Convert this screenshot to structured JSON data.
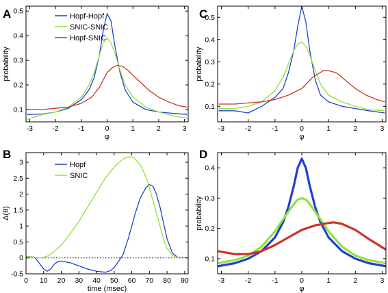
{
  "colors": {
    "blue": "#1f3fd1",
    "green": "#8fe23a",
    "red": "#cc3322"
  },
  "panels": [
    {
      "letter": "A",
      "type": "line",
      "xlabel": "φ",
      "ylabel": "probability",
      "xlim": [
        -3.14159,
        3.14159
      ],
      "ylim": [
        0.05,
        0.52
      ],
      "xticks": [
        -3,
        -2,
        -1,
        0,
        1,
        2,
        3
      ],
      "yticks": [
        0.1,
        0.2,
        0.3,
        0.4,
        0.5
      ],
      "legend": [
        "Hopf-Hopf",
        "SNIC-SNIC",
        "Hopf-SNIC"
      ],
      "legend_position": "top-left",
      "series": [
        {
          "name": "Hopf-Hopf",
          "color": "blue",
          "x": [
            -3.1,
            -2.5,
            -2,
            -1.5,
            -1,
            -0.7,
            -0.5,
            -0.3,
            -0.15,
            0,
            0.15,
            0.3,
            0.5,
            0.7,
            1,
            1.5,
            2,
            2.5,
            3.1
          ],
          "y": [
            0.08,
            0.082,
            0.09,
            0.105,
            0.14,
            0.18,
            0.23,
            0.32,
            0.42,
            0.49,
            0.46,
            0.36,
            0.25,
            0.18,
            0.13,
            0.1,
            0.09,
            0.085,
            0.08
          ]
        },
        {
          "name": "SNIC-SNIC",
          "color": "green",
          "x": [
            -3.1,
            -2.5,
            -2,
            -1.5,
            -1,
            -0.7,
            -0.5,
            -0.3,
            -0.15,
            0,
            0.15,
            0.3,
            0.5,
            0.7,
            1,
            1.5,
            2,
            2.5,
            3.1
          ],
          "y": [
            0.06,
            0.08,
            0.09,
            0.11,
            0.15,
            0.2,
            0.25,
            0.32,
            0.37,
            0.39,
            0.37,
            0.33,
            0.26,
            0.2,
            0.15,
            0.11,
            0.09,
            0.075,
            0.065
          ]
        },
        {
          "name": "Hopf-SNIC",
          "color": "red",
          "x": [
            -3.1,
            -2.5,
            -2,
            -1.5,
            -1,
            -0.6,
            -0.3,
            0,
            0.2,
            0.4,
            0.6,
            0.8,
            1,
            1.3,
            1.6,
            2,
            2.4,
            2.8,
            3.1
          ],
          "y": [
            0.1,
            0.1,
            0.105,
            0.11,
            0.125,
            0.15,
            0.19,
            0.25,
            0.27,
            0.28,
            0.275,
            0.26,
            0.24,
            0.21,
            0.18,
            0.15,
            0.13,
            0.115,
            0.11
          ]
        }
      ]
    },
    {
      "letter": "C",
      "type": "line",
      "xlabel": "φ",
      "ylabel": "probability",
      "xlim": [
        -3.14159,
        3.14159
      ],
      "ylim": [
        0.03,
        0.55
      ],
      "xticks": [
        -3,
        -2,
        -1,
        0,
        1,
        2,
        3
      ],
      "yticks": [
        0.1,
        0.2,
        0.3,
        0.4,
        0.5
      ],
      "series": [
        {
          "name": "",
          "color": "blue",
          "x": [
            -3.1,
            -2.5,
            -2,
            -1.5,
            -1,
            -0.7,
            -0.5,
            -0.3,
            -0.15,
            0,
            0.15,
            0.3,
            0.5,
            0.7,
            1,
            1.5,
            2,
            2.5,
            3.1
          ],
          "y": [
            0.08,
            0.08,
            0.07,
            0.1,
            0.14,
            0.18,
            0.25,
            0.35,
            0.46,
            0.55,
            0.48,
            0.35,
            0.22,
            0.15,
            0.12,
            0.1,
            0.09,
            0.08,
            0.07
          ]
        },
        {
          "name": "",
          "color": "green",
          "x": [
            -3.1,
            -2.5,
            -2,
            -1.5,
            -1,
            -0.7,
            -0.5,
            -0.3,
            -0.15,
            0,
            0.15,
            0.3,
            0.5,
            0.7,
            1,
            1.5,
            2,
            2.5,
            3.1
          ],
          "y": [
            0.09,
            0.09,
            0.1,
            0.12,
            0.17,
            0.23,
            0.29,
            0.35,
            0.38,
            0.39,
            0.37,
            0.33,
            0.26,
            0.2,
            0.15,
            0.12,
            0.1,
            0.085,
            0.08
          ]
        },
        {
          "name": "",
          "color": "red",
          "x": [
            -3.1,
            -2.5,
            -2,
            -1.5,
            -1,
            -0.5,
            0,
            0.4,
            0.8,
            1,
            1.3,
            1.6,
            2,
            2.4,
            2.8,
            3.1
          ],
          "y": [
            0.11,
            0.11,
            0.115,
            0.12,
            0.13,
            0.15,
            0.18,
            0.23,
            0.26,
            0.26,
            0.25,
            0.22,
            0.18,
            0.15,
            0.13,
            0.12
          ]
        }
      ]
    },
    {
      "letter": "B",
      "type": "line",
      "xlabel": "time (msec)",
      "ylabel": "Δ(θ)",
      "xlim": [
        0,
        92
      ],
      "ylim": [
        -0.5,
        3.3
      ],
      "xticks": [
        0,
        10,
        20,
        30,
        40,
        50,
        60,
        70,
        80,
        90
      ],
      "yticks": [
        -0.5,
        0,
        0.5,
        1,
        1.5,
        2,
        2.5,
        3
      ],
      "legend": [
        "Hopf",
        "SNIC"
      ],
      "legend_position": "top-center",
      "zero_line": true,
      "series": [
        {
          "name": "Hopf",
          "color": "blue",
          "x": [
            0,
            5,
            8,
            10,
            12,
            14,
            16,
            18,
            20,
            25,
            30,
            35,
            40,
            45,
            48,
            50,
            52,
            55,
            58,
            60,
            62,
            65,
            68,
            70,
            72,
            74,
            76,
            78,
            80,
            83,
            86,
            90
          ],
          "y": [
            0.05,
            0.02,
            -0.2,
            -0.35,
            -0.42,
            -0.35,
            -0.2,
            -0.12,
            -0.1,
            -0.15,
            -0.25,
            -0.35,
            -0.42,
            -0.45,
            -0.4,
            -0.3,
            -0.15,
            0.1,
            0.6,
            1.0,
            1.4,
            1.9,
            2.2,
            2.3,
            2.25,
            2.0,
            1.6,
            1.1,
            0.6,
            0.15,
            0.02,
            0.02
          ]
        },
        {
          "name": "SNIC",
          "color": "green",
          "x": [
            0,
            5,
            8,
            10,
            12,
            15,
            20,
            25,
            30,
            35,
            40,
            45,
            50,
            55,
            58,
            60,
            62,
            65,
            68,
            70,
            72,
            75,
            78,
            80,
            83,
            86,
            90
          ],
          "y": [
            0.05,
            0.01,
            0.0,
            0.02,
            0.05,
            0.15,
            0.4,
            0.75,
            1.15,
            1.6,
            2.05,
            2.5,
            2.85,
            3.1,
            3.17,
            3.17,
            3.1,
            2.9,
            2.55,
            2.2,
            1.8,
            1.2,
            0.6,
            0.3,
            0.07,
            0.02,
            0.02
          ]
        }
      ]
    },
    {
      "letter": "D",
      "type": "line",
      "xlabel": "φ",
      "ylabel": "probability",
      "xlim": [
        -3.14159,
        3.14159
      ],
      "ylim": [
        0.05,
        0.45
      ],
      "xticks": [
        -3,
        -2,
        -1,
        0,
        1,
        2,
        3
      ],
      "yticks": [
        0.1,
        0.2,
        0.3,
        0.4
      ],
      "series": [
        {
          "name": "",
          "color": "blue",
          "x": [
            -3.14,
            -2.5,
            -2,
            -1.5,
            -1,
            -0.7,
            -0.5,
            -0.3,
            -0.15,
            0,
            0.15,
            0.3,
            0.5,
            0.7,
            1,
            1.5,
            2,
            2.5,
            3.14
          ],
          "y": [
            0.075,
            0.085,
            0.1,
            0.125,
            0.17,
            0.22,
            0.27,
            0.34,
            0.4,
            0.43,
            0.4,
            0.34,
            0.27,
            0.22,
            0.17,
            0.125,
            0.1,
            0.085,
            0.075
          ]
        },
        {
          "name": "",
          "color": "green",
          "x": [
            -3.14,
            -2.5,
            -2,
            -1.5,
            -1,
            -0.7,
            -0.5,
            -0.3,
            -0.15,
            0,
            0.15,
            0.3,
            0.5,
            0.7,
            1,
            1.5,
            2,
            2.5,
            3.14
          ],
          "y": [
            0.085,
            0.095,
            0.11,
            0.14,
            0.19,
            0.23,
            0.255,
            0.28,
            0.295,
            0.3,
            0.295,
            0.28,
            0.255,
            0.23,
            0.19,
            0.14,
            0.11,
            0.095,
            0.085
          ]
        },
        {
          "name": "",
          "color": "red",
          "x": [
            -3.14,
            -2.5,
            -2,
            -1.5,
            -1,
            -0.5,
            0,
            0.5,
            1,
            1.2,
            1.5,
            2,
            2.5,
            3.14
          ],
          "y": [
            0.125,
            0.115,
            0.115,
            0.125,
            0.145,
            0.17,
            0.195,
            0.21,
            0.218,
            0.22,
            0.215,
            0.195,
            0.165,
            0.13
          ]
        }
      ]
    }
  ]
}
